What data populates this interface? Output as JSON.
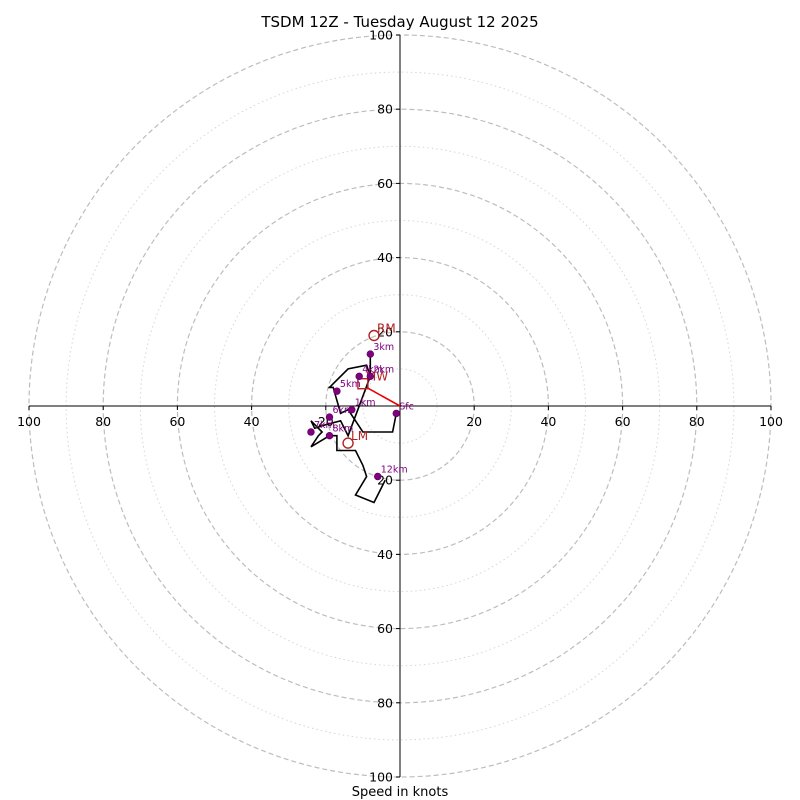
{
  "chart_data": {
    "type": "hodograph",
    "title": "TSDM 12Z - Tuesday August 12 2025",
    "xlabel": "Speed in knots",
    "ylabel": "",
    "xlim": [
      -100,
      100
    ],
    "ylim": [
      -100,
      100
    ],
    "rings_major": [
      20,
      40,
      60,
      80,
      100
    ],
    "rings_minor": [
      10,
      30,
      50,
      70,
      90
    ],
    "x_tick_labels": [
      "100",
      "80",
      "60",
      "40",
      "20",
      "20",
      "40",
      "60",
      "80",
      "100"
    ],
    "y_tick_labels": [
      "100",
      "80",
      "60",
      "40",
      "20",
      "20",
      "40",
      "60",
      "80",
      "100"
    ],
    "grid": true,
    "trace_color": "#000000",
    "point_color": "#800080",
    "motion_color": "#b22222",
    "shear_color": "#ee0000",
    "wind_trace": [
      {
        "u": -1,
        "v": -2
      },
      {
        "u": -2,
        "v": -7
      },
      {
        "u": -10,
        "v": -7
      },
      {
        "u": -14,
        "v": -1
      },
      {
        "u": -16,
        "v": -2
      },
      {
        "u": -18,
        "v": 5
      },
      {
        "u": -19,
        "v": 5
      },
      {
        "u": -18,
        "v": 6
      },
      {
        "u": -14,
        "v": 10
      },
      {
        "u": -9,
        "v": 11
      },
      {
        "u": -8,
        "v": 8
      },
      {
        "u": -8,
        "v": 14
      },
      {
        "u": -8,
        "v": 8
      },
      {
        "u": -14,
        "v": -8
      },
      {
        "u": -16,
        "v": -4
      },
      {
        "u": -20,
        "v": -5
      },
      {
        "u": -23,
        "v": -6
      },
      {
        "u": -24,
        "v": -4
      },
      {
        "u": -21,
        "v": -7
      },
      {
        "u": -22,
        "v": -8
      },
      {
        "u": -24,
        "v": -11
      },
      {
        "u": -19,
        "v": -8
      },
      {
        "u": -17,
        "v": -8
      },
      {
        "u": -17,
        "v": -12
      },
      {
        "u": -12,
        "v": -12
      },
      {
        "u": -10,
        "v": -16
      },
      {
        "u": -9,
        "v": -19
      },
      {
        "u": -12,
        "v": -24
      },
      {
        "u": -7,
        "v": -26
      },
      {
        "u": -4,
        "v": -20
      }
    ],
    "height_points": [
      {
        "label": "Sfc",
        "u": -1,
        "v": -2
      },
      {
        "label": "1km",
        "u": -13,
        "v": -1
      },
      {
        "label": "2km",
        "u": -8,
        "v": 8
      },
      {
        "label": "3km",
        "u": -8,
        "v": 14
      },
      {
        "label": "4km",
        "u": -11,
        "v": 8
      },
      {
        "label": "5km",
        "u": -17,
        "v": 4
      },
      {
        "label": "6km",
        "u": -19,
        "v": -3
      },
      {
        "label": "7km",
        "u": -24,
        "v": -7
      },
      {
        "label": "8km",
        "u": -19,
        "v": -8
      },
      {
        "label": "12km",
        "u": -6,
        "v": -19
      }
    ],
    "storm_motion": [
      {
        "label": "RM",
        "u": -7,
        "v": 19
      },
      {
        "label": "MW",
        "u": -10,
        "v": 6
      },
      {
        "label": "LM",
        "u": -14,
        "v": -10
      }
    ],
    "shear_vector": {
      "from": {
        "u": 0,
        "v": 0
      },
      "to": {
        "u": -9,
        "v": 5
      }
    }
  }
}
